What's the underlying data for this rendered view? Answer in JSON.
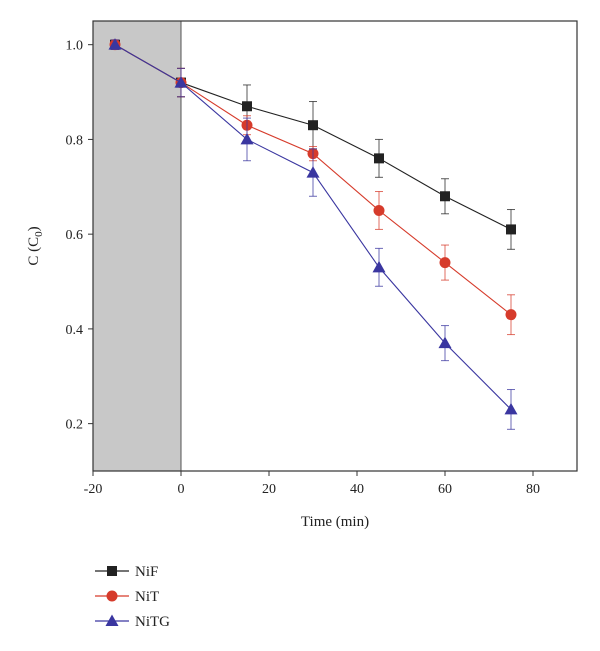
{
  "chart_data": {
    "type": "line",
    "xlabel": "Time (min)",
    "ylabel": "C (C",
    "ylabel_sub": "0",
    "ylabel_close": ")",
    "xlim": [
      -20,
      90
    ],
    "ylim": [
      0.1,
      1.05
    ],
    "xticks": [
      -20,
      0,
      20,
      40,
      60,
      80
    ],
    "xtick_labels": [
      "-20",
      "0",
      "20",
      "40",
      "60",
      "80"
    ],
    "yticks": [
      0.2,
      0.4,
      0.6,
      0.8,
      1.0
    ],
    "ytick_labels": [
      "0.2",
      "0.4",
      "0.6",
      "0.8",
      "1.0"
    ],
    "dark_region": {
      "x_from": -20,
      "x_to": 0,
      "color": "#c8c8c8"
    },
    "x": [
      -15,
      0,
      15,
      30,
      45,
      60,
      75
    ],
    "series": [
      {
        "name": "NiF",
        "marker": "square",
        "color": "#222222",
        "values": [
          1.0,
          0.92,
          0.87,
          0.83,
          0.76,
          0.68,
          0.61
        ],
        "errors": [
          0.01,
          0.03,
          0.045,
          0.05,
          0.04,
          0.037,
          0.042
        ]
      },
      {
        "name": "NiT",
        "marker": "circle",
        "color": "#d63b2b",
        "values": [
          1.0,
          0.92,
          0.83,
          0.77,
          0.65,
          0.54,
          0.43
        ],
        "errors": [
          0.01,
          0.03,
          0.02,
          0.015,
          0.04,
          0.037,
          0.042
        ]
      },
      {
        "name": "NiTG",
        "marker": "triangle",
        "color": "#3a36a0",
        "values": [
          1.0,
          0.92,
          0.8,
          0.73,
          0.53,
          0.37,
          0.23
        ],
        "errors": [
          0.01,
          0.03,
          0.045,
          0.05,
          0.04,
          0.037,
          0.042
        ]
      }
    ],
    "legend_position": "bottom-left",
    "grid": false
  }
}
